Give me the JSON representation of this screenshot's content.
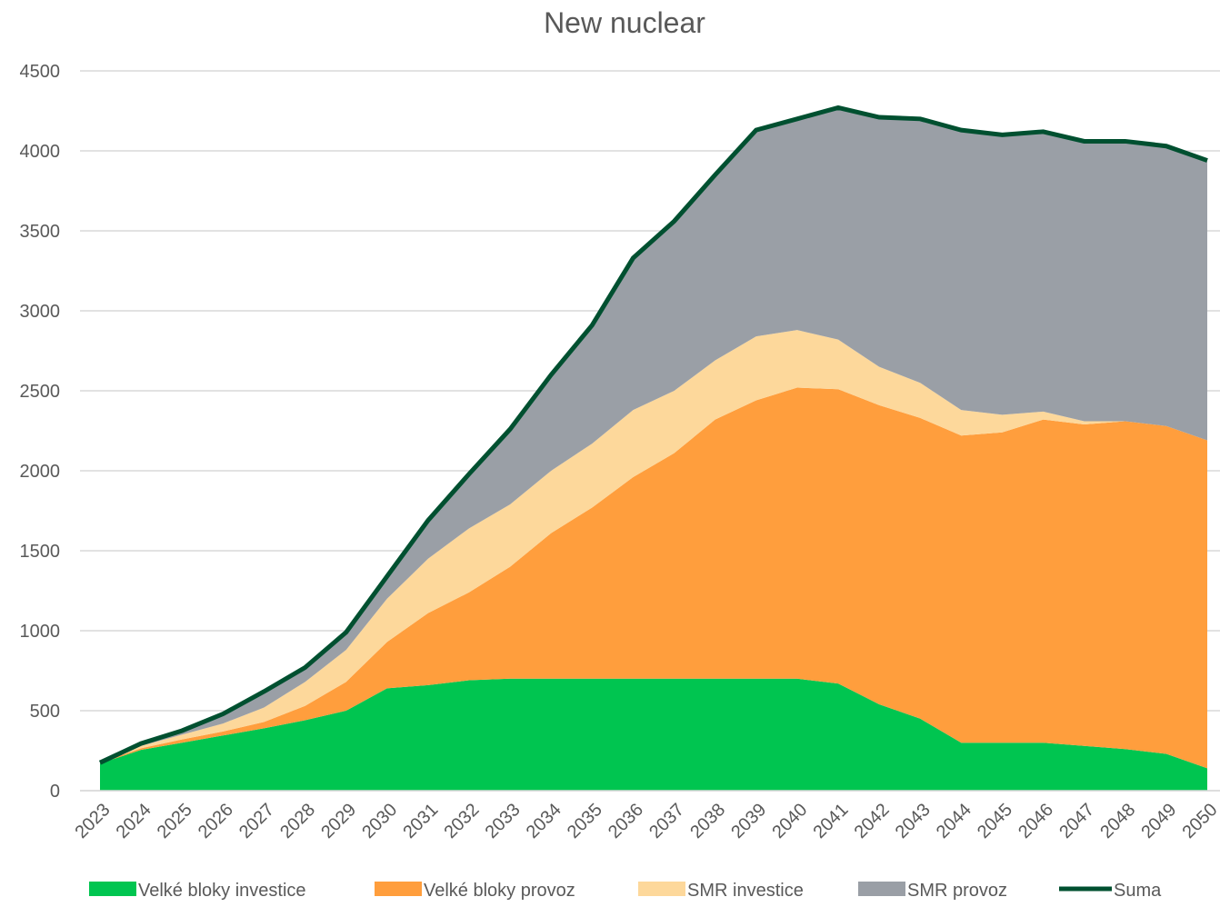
{
  "chart_data": {
    "type": "stacked_area",
    "title": "New nuclear",
    "categories": [
      "2023",
      "2024",
      "2025",
      "2026",
      "2027",
      "2028",
      "2029",
      "2030",
      "2031",
      "2032",
      "2033",
      "2034",
      "2035",
      "2036",
      "2037",
      "2038",
      "2039",
      "2040",
      "2041",
      "2042",
      "2043",
      "2044",
      "2045",
      "2046",
      "2047",
      "2048",
      "2049",
      "2050"
    ],
    "series": [
      {
        "name": "Velké bloky investice",
        "color": "#00c550",
        "values": [
          170,
          255,
          300,
          345,
          390,
          440,
          500,
          640,
          660,
          690,
          700,
          700,
          700,
          700,
          700,
          700,
          700,
          700,
          670,
          540,
          450,
          300,
          300,
          300,
          280,
          260,
          230,
          140
        ]
      },
      {
        "name": "Velké bloky provoz",
        "color": "#ff9e3d",
        "values": [
          5,
          10,
          20,
          25,
          40,
          90,
          180,
          290,
          450,
          550,
          700,
          910,
          1070,
          1260,
          1410,
          1620,
          1740,
          1820,
          1840,
          1870,
          1880,
          1920,
          1940,
          2020,
          2010,
          2050,
          2050,
          2050
        ]
      },
      {
        "name": "SMR investice",
        "color": "#fdd89b",
        "values": [
          0,
          15,
          30,
          50,
          90,
          150,
          200,
          270,
          340,
          400,
          390,
          390,
          400,
          420,
          390,
          370,
          400,
          360,
          310,
          240,
          220,
          160,
          110,
          50,
          20,
          0,
          0,
          0
        ]
      },
      {
        "name": "SMR provoz",
        "color": "#9a9fa6",
        "values": [
          0,
          15,
          25,
          60,
          100,
          90,
          110,
          140,
          240,
          340,
          470,
          600,
          740,
          950,
          1060,
          1160,
          1290,
          1320,
          1450,
          1560,
          1650,
          1750,
          1750,
          1750,
          1750,
          1750,
          1750,
          1750
        ]
      }
    ],
    "line": {
      "name": "Suma",
      "color": "#005030",
      "values": [
        175,
        295,
        375,
        480,
        620,
        770,
        990,
        1340,
        1690,
        1980,
        2260,
        2600,
        2910,
        3330,
        3560,
        3850,
        4130,
        4200,
        4270,
        4210,
        4200,
        4130,
        4100,
        4120,
        4060,
        4060,
        4030,
        3940
      ]
    },
    "ylim": [
      0,
      4500
    ],
    "yticks": [
      0,
      500,
      1000,
      1500,
      2000,
      2500,
      3000,
      3500,
      4000,
      4500
    ],
    "grid": true
  }
}
